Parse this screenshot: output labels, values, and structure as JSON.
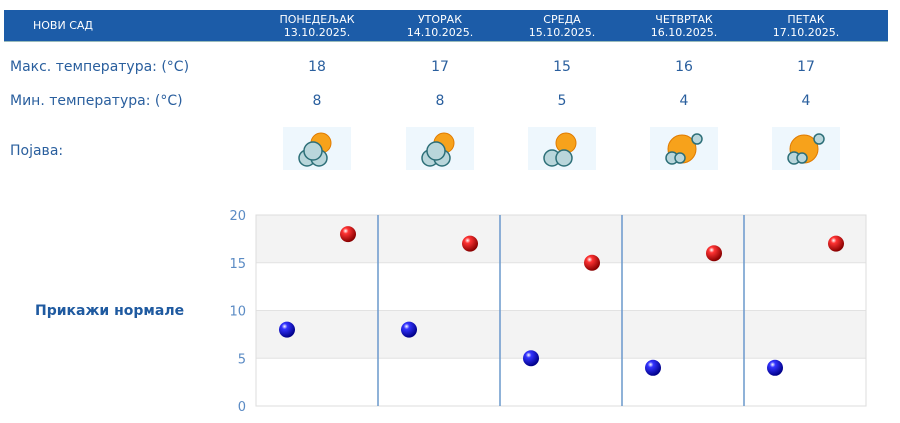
{
  "header": {
    "city": "НОВИ САД",
    "days": [
      {
        "name": "ПОНЕДЕЉАК",
        "date": "13.10.2025.",
        "max": "18",
        "min": "8",
        "icon": "cloudy-sun-icon"
      },
      {
        "name": "УТОРАК",
        "date": "14.10.2025.",
        "max": "17",
        "min": "8",
        "icon": "cloudy-sun-icon"
      },
      {
        "name": "СРЕДА",
        "date": "15.10.2025.",
        "max": "15",
        "min": "5",
        "icon": "partly-cloudy-icon"
      },
      {
        "name": "ЧЕТВРТАК",
        "date": "16.10.2025.",
        "max": "16",
        "min": "4",
        "icon": "mostly-sunny-icon"
      },
      {
        "name": "ПЕТАК",
        "date": "17.10.2025.",
        "max": "17",
        "min": "4",
        "icon": "mostly-sunny-icon"
      }
    ]
  },
  "rows": {
    "max_label": "Макс. температура: (°C)",
    "min_label": "Мин. температура: (°C)",
    "phen_label": "Појава:"
  },
  "show_normals": "Прикажи нормале",
  "chart_data": {
    "type": "scatter",
    "categories": [
      "13.10.2025.",
      "14.10.2025.",
      "15.10.2025.",
      "16.10.2025.",
      "17.10.2025."
    ],
    "series": [
      {
        "values": [
          8,
          8,
          5,
          4,
          4
        ],
        "color": "#0000cc"
      },
      {
        "values": [
          18,
          17,
          15,
          16,
          17
        ],
        "color": "#cc0000"
      }
    ],
    "ylim": [
      0,
      20
    ],
    "yticks": [
      "0",
      "5",
      "10",
      "15",
      "20"
    ],
    "grid": true
  }
}
